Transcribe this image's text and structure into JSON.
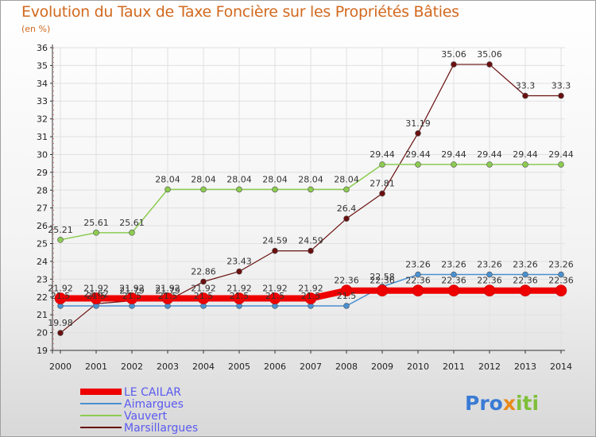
{
  "title": "Evolution du Taux de Taxe Foncière sur les Propriétés Bâties",
  "unit": "(en %)",
  "brand": {
    "p": "Pr",
    "o": "o",
    "x": "x",
    "i": "iti"
  },
  "chart_data": {
    "type": "line",
    "categories": [
      "2000",
      "2001",
      "2002",
      "2003",
      "2004",
      "2005",
      "2006",
      "2007",
      "2008",
      "2009",
      "2010",
      "2011",
      "2012",
      "2013",
      "2014"
    ],
    "ylim": [
      19,
      36
    ],
    "yticks": [
      "19",
      "20",
      "21",
      "22",
      "23",
      "24",
      "25",
      "26",
      "27",
      "28",
      "29",
      "30",
      "31",
      "32",
      "33",
      "34",
      "35",
      "36"
    ],
    "legend_position": "bottom-left",
    "series": [
      {
        "name": "LE CAILAR",
        "color": "#ee0000",
        "width": 8,
        "marker": 7,
        "values": [
          21.92,
          21.92,
          21.92,
          21.92,
          21.92,
          21.92,
          21.92,
          21.92,
          22.36,
          22.36,
          22.36,
          22.36,
          22.36,
          22.36,
          22.36
        ],
        "labels": [
          "21.92",
          "21.92",
          "21.92",
          "21.92",
          "21.92",
          "21.92",
          "21.92",
          "21.92",
          "22.36",
          "22.36",
          "22.36",
          "22.36",
          "22.36",
          "22.36",
          "22.36"
        ]
      },
      {
        "name": "Aimargues",
        "color": "#4a90d0",
        "width": 1.5,
        "marker": 3.5,
        "values": [
          21.5,
          21.5,
          21.5,
          21.5,
          21.5,
          21.5,
          21.5,
          21.5,
          21.5,
          22.58,
          23.26,
          23.26,
          23.26,
          23.26,
          23.26
        ],
        "labels": [
          "21.5",
          "21.5",
          "21.5",
          "21.5",
          "21.5",
          "21.5",
          "21.5",
          "21.5",
          "21.5",
          "22.58",
          "23.26",
          "23.26",
          "23.26",
          "23.26",
          "23.26"
        ]
      },
      {
        "name": "Vauvert",
        "color": "#8ccc50",
        "width": 1.5,
        "marker": 3.5,
        "values": [
          25.21,
          25.61,
          25.61,
          28.04,
          28.04,
          28.04,
          28.04,
          28.04,
          28.04,
          29.44,
          29.44,
          29.44,
          29.44,
          29.44,
          29.44
        ],
        "labels": [
          "25.21",
          "25.61",
          "25.61",
          "28.04",
          "28.04",
          "28.04",
          "28.04",
          "28.04",
          "28.04",
          "29.44",
          "29.44",
          "29.44",
          "29.44",
          "29.44",
          "29.44"
        ]
      },
      {
        "name": "Marsillargues",
        "color": "#6a1010",
        "width": 1.2,
        "marker": 3.5,
        "values": [
          19.98,
          21.62,
          21.79,
          21.79,
          22.86,
          23.43,
          24.59,
          24.59,
          26.4,
          27.81,
          31.19,
          35.06,
          35.06,
          33.3,
          33.3
        ],
        "labels": [
          "19.98",
          "21.62",
          "21.79",
          "21.79",
          "22.86",
          "23.43",
          "24.59",
          "24.59",
          "26.4",
          "27.81",
          "31.19",
          "35.06",
          "35.06",
          "33.3",
          "33.3"
        ]
      }
    ]
  }
}
